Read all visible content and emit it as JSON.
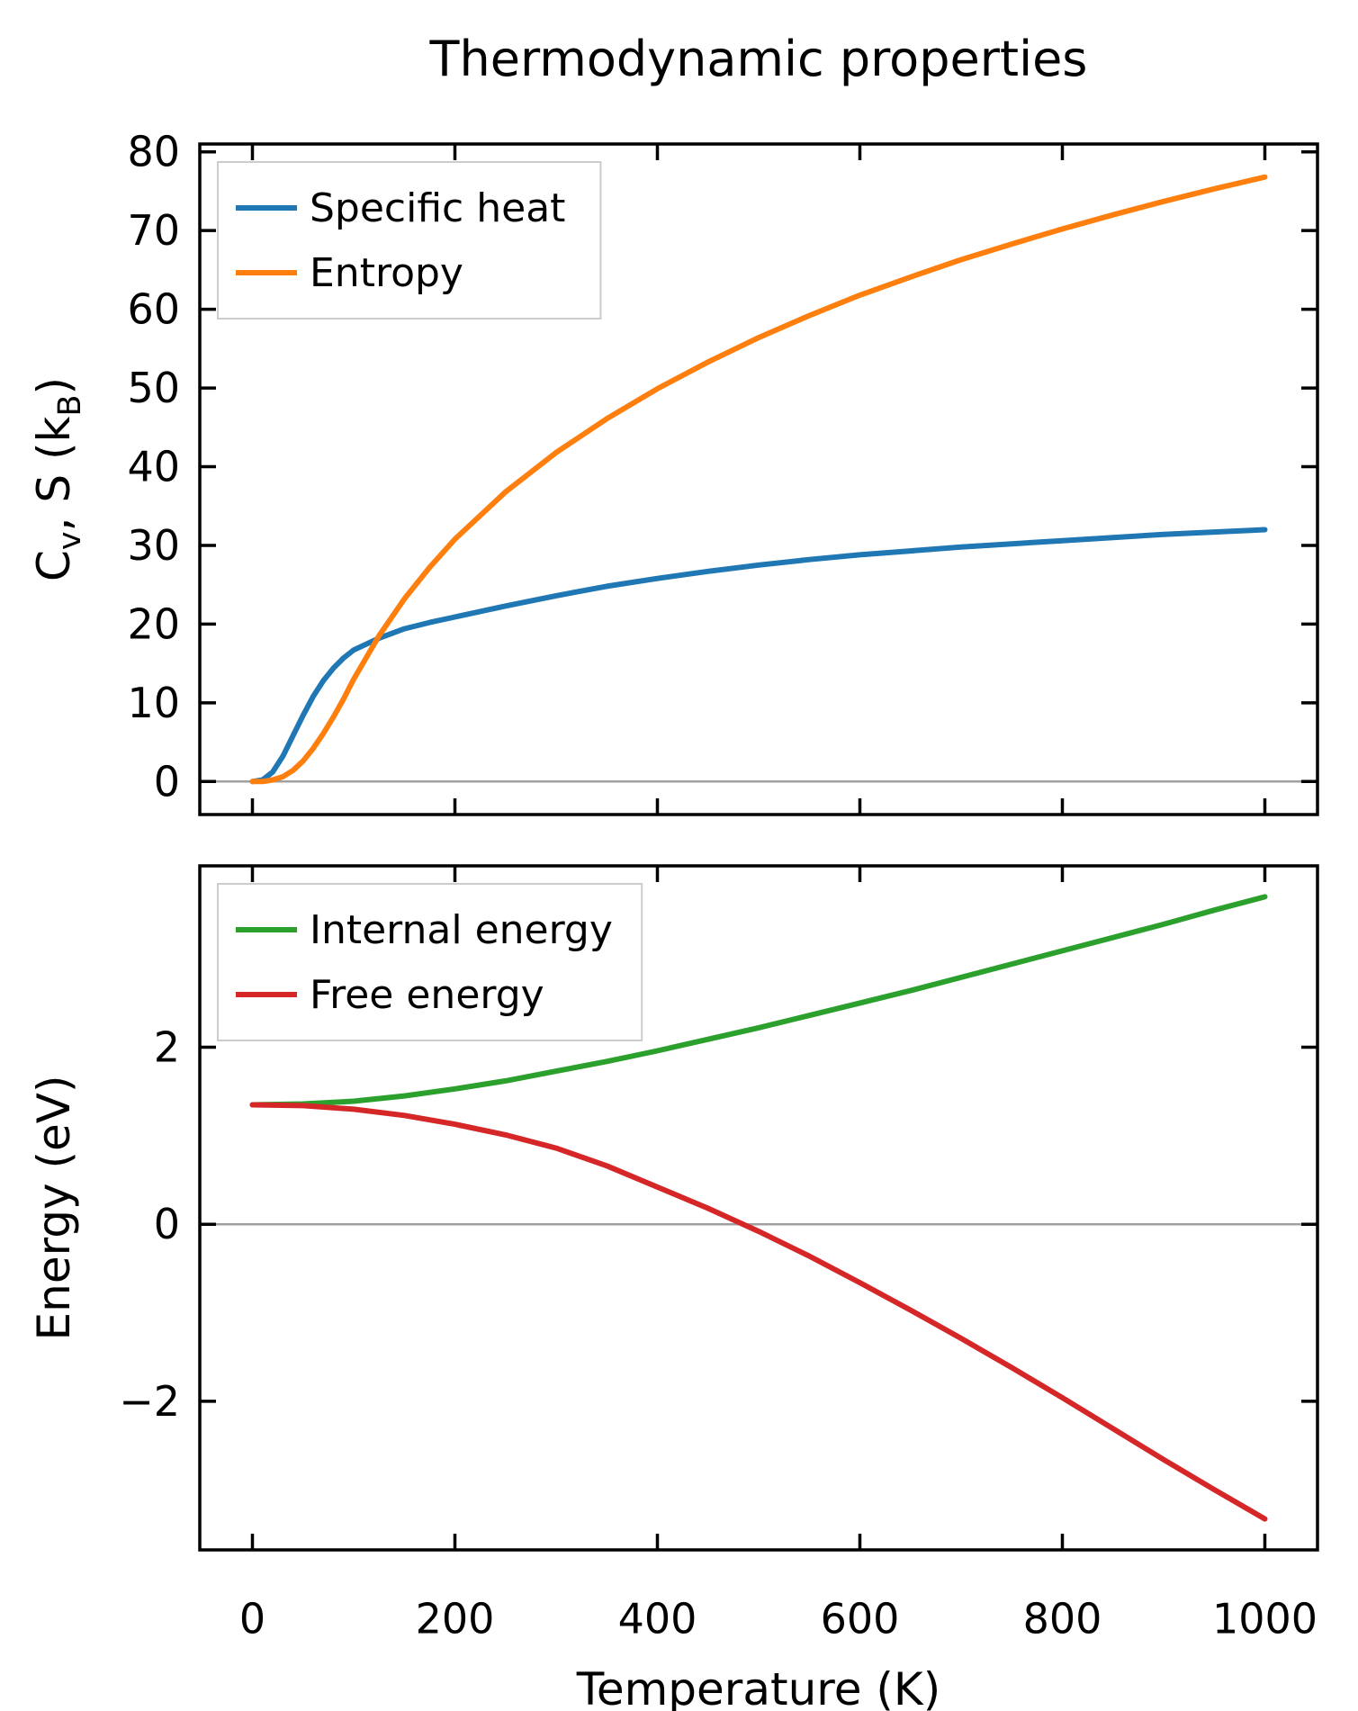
{
  "title": "Thermodynamic properties",
  "chart_data": [
    {
      "type": "line",
      "title": "",
      "xlabel": "",
      "ylabel": "C_v, S (k_B)",
      "xlim": [
        -52,
        1052
      ],
      "ylim": [
        -4.2,
        81
      ],
      "xticks": [
        0,
        200,
        400,
        600,
        800,
        1000
      ],
      "yticks": [
        0,
        10,
        20,
        30,
        40,
        50,
        60,
        70,
        80
      ],
      "show_xtick_labels": false,
      "grid": false,
      "zero_line": 0,
      "legend_position": "upper left",
      "x": [
        0,
        10,
        20,
        30,
        40,
        50,
        60,
        70,
        80,
        90,
        100,
        125,
        150,
        175,
        200,
        250,
        300,
        350,
        400,
        450,
        500,
        550,
        600,
        650,
        700,
        750,
        800,
        850,
        900,
        950,
        1000
      ],
      "series": [
        {
          "name": "Specific heat",
          "color": "#1f77b4",
          "values": [
            0,
            0.2,
            1.2,
            3.2,
            5.8,
            8.4,
            10.8,
            12.8,
            14.4,
            15.7,
            16.7,
            18.2,
            19.4,
            20.2,
            20.9,
            22.3,
            23.6,
            24.8,
            25.8,
            26.7,
            27.5,
            28.2,
            28.8,
            29.3,
            29.8,
            30.2,
            30.6,
            31.0,
            31.4,
            31.7,
            32.0
          ]
        },
        {
          "name": "Entropy",
          "color": "#ff7f0e",
          "values": [
            0,
            0,
            0.2,
            0.6,
            1.4,
            2.6,
            4.2,
            6.1,
            8.2,
            10.5,
            13.0,
            18.5,
            23.2,
            27.2,
            30.8,
            36.8,
            41.8,
            46.1,
            49.9,
            53.3,
            56.4,
            59.2,
            61.8,
            64.1,
            66.3,
            68.3,
            70.2,
            72.0,
            73.7,
            75.3,
            76.8
          ]
        }
      ]
    },
    {
      "type": "line",
      "title": "",
      "xlabel": "Temperature (K)",
      "ylabel": "Energy (eV)",
      "xlim": [
        -52,
        1052
      ],
      "ylim": [
        -3.68,
        4.05
      ],
      "xticks": [
        0,
        200,
        400,
        600,
        800,
        1000
      ],
      "yticks": [
        -2,
        0,
        2
      ],
      "show_xtick_labels": true,
      "grid": false,
      "zero_line": 0,
      "legend_position": "upper left",
      "x": [
        0,
        50,
        100,
        150,
        200,
        250,
        300,
        350,
        400,
        450,
        500,
        550,
        600,
        650,
        700,
        750,
        800,
        850,
        900,
        950,
        1000
      ],
      "series": [
        {
          "name": "Internal energy",
          "color": "#2ca02c",
          "values": [
            1.35,
            1.36,
            1.39,
            1.45,
            1.53,
            1.62,
            1.73,
            1.84,
            1.96,
            2.09,
            2.22,
            2.36,
            2.5,
            2.64,
            2.79,
            2.94,
            3.09,
            3.24,
            3.39,
            3.55,
            3.7
          ]
        },
        {
          "name": "Free energy",
          "color": "#d62728",
          "values": [
            1.35,
            1.34,
            1.3,
            1.23,
            1.13,
            1.01,
            0.86,
            0.66,
            0.42,
            0.18,
            -0.08,
            -0.36,
            -0.66,
            -0.97,
            -1.29,
            -1.62,
            -1.96,
            -2.31,
            -2.66,
            -3.0,
            -3.33
          ]
        }
      ]
    }
  ]
}
